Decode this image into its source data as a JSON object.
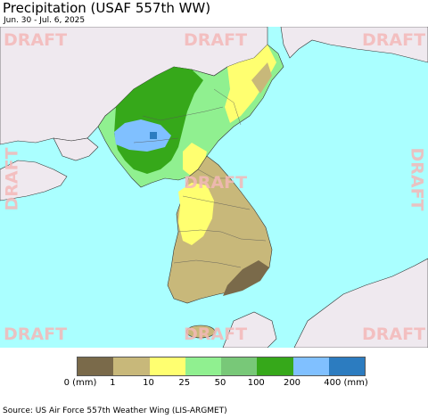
{
  "header": {
    "title": "Precipitation (USAF 557th WW)",
    "subtitle": "Jun. 30 - Jul. 6, 2025"
  },
  "watermark": "DRAFT",
  "legend": {
    "colors": [
      "#7a6a4a",
      "#c8b87a",
      "#ffff70",
      "#90f090",
      "#78c878",
      "#36a81a",
      "#80c0ff",
      "#2c7cc0"
    ],
    "labels": [
      "0 (mm)",
      "1",
      "10",
      "25",
      "50",
      "100",
      "200",
      "400 (mm)"
    ]
  },
  "source": "Source: US Air Force 557th Weather Wing (LIS-ARGMET)",
  "colors": {
    "sea": "#aaffff",
    "land_foreign": "#efe9ef",
    "border": "#333333"
  }
}
